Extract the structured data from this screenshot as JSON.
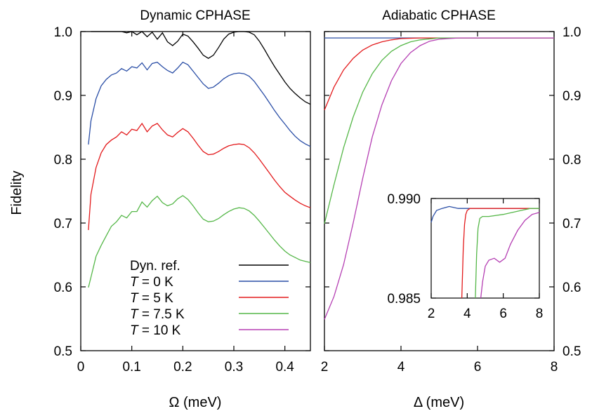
{
  "figure": {
    "ylabel": "Fidelity",
    "legend_placement": "bottom-left of left panel",
    "legend": [
      {
        "label": "Dyn. ref.",
        "italic_prefix": "",
        "color": "#000000"
      },
      {
        "label": " = 0 K",
        "italic_prefix": "T",
        "color": "#2a4ea6"
      },
      {
        "label": " = 5 K",
        "italic_prefix": "T",
        "color": "#e31a1c"
      },
      {
        "label": " = 7.5 K",
        "italic_prefix": "T",
        "color": "#55b748"
      },
      {
        "label": " = 10 K",
        "italic_prefix": "T",
        "color": "#b53fb3"
      }
    ]
  },
  "chart_data": [
    {
      "type": "line",
      "title": "Dynamic CPHASE",
      "xlabel": "Ω (meV)",
      "ylabel": "Fidelity",
      "xlim": [
        0,
        0.45
      ],
      "ylim": [
        0.5,
        1.0
      ],
      "xticks": [
        "0",
        "0.1",
        "0.2",
        "0.3",
        "0.4"
      ],
      "xtick_values": [
        0,
        0.1,
        0.2,
        0.3,
        0.4
      ],
      "yticks": [
        "0.5",
        "0.6",
        "0.7",
        "0.8",
        "0.9",
        "1.0"
      ],
      "ytick_values": [
        0.5,
        0.6,
        0.7,
        0.8,
        0.9,
        1.0
      ],
      "grid": false,
      "series": [
        {
          "name": "Dyn. ref.",
          "color": "#000000",
          "x": [
            0.02,
            0.05,
            0.08,
            0.09,
            0.1,
            0.11,
            0.12,
            0.13,
            0.14,
            0.15,
            0.16,
            0.17,
            0.18,
            0.19,
            0.2,
            0.21,
            0.22,
            0.23,
            0.24,
            0.25,
            0.26,
            0.27,
            0.28,
            0.29,
            0.3,
            0.31,
            0.32,
            0.33,
            0.34,
            0.35,
            0.36,
            0.37,
            0.38,
            0.39,
            0.4,
            0.41,
            0.42,
            0.43,
            0.44,
            0.45
          ],
          "y": [
            1.0,
            1.0,
            1.0,
            0.998,
            1.0,
            0.995,
            1.0,
            0.992,
            0.999,
            0.988,
            0.998,
            0.984,
            0.978,
            0.985,
            0.996,
            0.993,
            0.984,
            0.974,
            0.963,
            0.958,
            0.963,
            0.975,
            0.988,
            0.996,
            0.999,
            1.0,
            1.0,
            0.999,
            0.995,
            0.985,
            0.972,
            0.958,
            0.945,
            0.933,
            0.921,
            0.911,
            0.903,
            0.896,
            0.89,
            0.886
          ]
        },
        {
          "name": "T = 0 K",
          "color": "#2a4ea6",
          "x": [
            0.015,
            0.02,
            0.03,
            0.04,
            0.05,
            0.06,
            0.07,
            0.08,
            0.09,
            0.1,
            0.11,
            0.12,
            0.13,
            0.14,
            0.15,
            0.16,
            0.17,
            0.18,
            0.19,
            0.2,
            0.21,
            0.22,
            0.23,
            0.24,
            0.25,
            0.26,
            0.27,
            0.28,
            0.29,
            0.3,
            0.31,
            0.32,
            0.33,
            0.34,
            0.35,
            0.36,
            0.37,
            0.38,
            0.39,
            0.4,
            0.41,
            0.42,
            0.43,
            0.44,
            0.45
          ],
          "y": [
            0.823,
            0.86,
            0.895,
            0.915,
            0.925,
            0.932,
            0.935,
            0.942,
            0.938,
            0.945,
            0.943,
            0.951,
            0.94,
            0.95,
            0.952,
            0.945,
            0.939,
            0.935,
            0.943,
            0.952,
            0.948,
            0.938,
            0.928,
            0.918,
            0.911,
            0.913,
            0.919,
            0.926,
            0.931,
            0.934,
            0.935,
            0.934,
            0.93,
            0.922,
            0.911,
            0.9,
            0.888,
            0.876,
            0.865,
            0.855,
            0.845,
            0.836,
            0.829,
            0.824,
            0.82
          ]
        },
        {
          "name": "T = 5 K",
          "color": "#e31a1c",
          "x": [
            0.015,
            0.02,
            0.03,
            0.04,
            0.05,
            0.06,
            0.07,
            0.08,
            0.09,
            0.1,
            0.11,
            0.12,
            0.13,
            0.14,
            0.15,
            0.16,
            0.17,
            0.18,
            0.19,
            0.2,
            0.21,
            0.22,
            0.23,
            0.24,
            0.25,
            0.26,
            0.27,
            0.28,
            0.29,
            0.3,
            0.31,
            0.32,
            0.33,
            0.34,
            0.35,
            0.36,
            0.37,
            0.38,
            0.39,
            0.4,
            0.41,
            0.42,
            0.43,
            0.44,
            0.45
          ],
          "y": [
            0.689,
            0.745,
            0.787,
            0.81,
            0.823,
            0.83,
            0.835,
            0.843,
            0.838,
            0.847,
            0.845,
            0.856,
            0.843,
            0.852,
            0.856,
            0.846,
            0.838,
            0.835,
            0.842,
            0.848,
            0.843,
            0.833,
            0.822,
            0.812,
            0.807,
            0.808,
            0.812,
            0.817,
            0.821,
            0.823,
            0.824,
            0.823,
            0.818,
            0.81,
            0.8,
            0.789,
            0.778,
            0.767,
            0.757,
            0.748,
            0.742,
            0.736,
            0.731,
            0.727,
            0.724
          ]
        },
        {
          "name": "T = 7.5 K",
          "color": "#55b748",
          "x": [
            0.015,
            0.02,
            0.03,
            0.04,
            0.05,
            0.06,
            0.07,
            0.08,
            0.09,
            0.1,
            0.11,
            0.12,
            0.13,
            0.14,
            0.15,
            0.16,
            0.17,
            0.18,
            0.19,
            0.2,
            0.21,
            0.22,
            0.23,
            0.24,
            0.25,
            0.26,
            0.27,
            0.28,
            0.29,
            0.3,
            0.31,
            0.32,
            0.33,
            0.34,
            0.35,
            0.36,
            0.37,
            0.38,
            0.39,
            0.4,
            0.41,
            0.42,
            0.43,
            0.44,
            0.45
          ],
          "y": [
            0.599,
            0.615,
            0.648,
            0.665,
            0.68,
            0.695,
            0.702,
            0.712,
            0.708,
            0.718,
            0.718,
            0.733,
            0.725,
            0.735,
            0.742,
            0.732,
            0.727,
            0.73,
            0.738,
            0.743,
            0.737,
            0.727,
            0.716,
            0.706,
            0.702,
            0.703,
            0.707,
            0.713,
            0.718,
            0.722,
            0.724,
            0.723,
            0.719,
            0.712,
            0.703,
            0.693,
            0.683,
            0.673,
            0.664,
            0.656,
            0.65,
            0.646,
            0.642,
            0.64,
            0.638
          ]
        }
      ]
    },
    {
      "type": "line",
      "title": "Adiabatic CPHASE",
      "xlabel": "Δ (meV)",
      "ylabel": "Fidelity",
      "xlim": [
        2,
        8
      ],
      "ylim": [
        0.5,
        1.0
      ],
      "xticks": [
        "2",
        "4",
        "6",
        "8"
      ],
      "xtick_values": [
        2,
        4,
        6,
        8
      ],
      "yticks": [
        "0.5",
        "0.6",
        "0.7",
        "0.8",
        "0.9",
        "1.0"
      ],
      "ytick_values": [
        0.5,
        0.6,
        0.7,
        0.8,
        0.9,
        1.0
      ],
      "grid": false,
      "series": [
        {
          "name": "T = 0 K",
          "color": "#2a4ea6",
          "x": [
            2,
            3,
            4,
            5,
            6,
            7,
            8
          ],
          "y": [
            0.99,
            0.99,
            0.99,
            0.99,
            0.99,
            0.99,
            0.99
          ]
        },
        {
          "name": "T = 5 K",
          "color": "#e31a1c",
          "x": [
            2,
            2.25,
            2.5,
            2.75,
            3,
            3.25,
            3.5,
            3.75,
            4,
            4.5,
            5,
            6,
            8
          ],
          "y": [
            0.877,
            0.913,
            0.94,
            0.958,
            0.971,
            0.979,
            0.984,
            0.987,
            0.989,
            0.99,
            0.99,
            0.99,
            0.99
          ]
        },
        {
          "name": "T = 7.5 K",
          "color": "#55b748",
          "x": [
            2,
            2.25,
            2.5,
            2.75,
            3,
            3.25,
            3.5,
            3.75,
            4,
            4.25,
            4.5,
            5,
            5.5,
            8
          ],
          "y": [
            0.699,
            0.76,
            0.818,
            0.866,
            0.905,
            0.934,
            0.955,
            0.969,
            0.978,
            0.984,
            0.987,
            0.99,
            0.99,
            0.99
          ]
        },
        {
          "name": "T = 10 K",
          "color": "#b53fb3",
          "x": [
            2,
            2.25,
            2.5,
            2.75,
            3,
            3.25,
            3.5,
            3.75,
            4,
            4.25,
            4.5,
            4.75,
            5,
            5.5,
            6,
            8
          ],
          "y": [
            0.549,
            0.585,
            0.635,
            0.7,
            0.77,
            0.835,
            0.885,
            0.923,
            0.95,
            0.967,
            0.978,
            0.985,
            0.988,
            0.99,
            0.99,
            0.99
          ]
        }
      ]
    },
    {
      "type": "line",
      "title": "",
      "xlabel": "",
      "ylabel": "",
      "xlim": [
        2,
        8
      ],
      "ylim": [
        0.985,
        0.99
      ],
      "xticks": [
        "2",
        "4",
        "6",
        "8"
      ],
      "xtick_values": [
        2,
        4,
        6,
        8
      ],
      "yticks": [
        "0.985",
        "0.990"
      ],
      "ytick_values": [
        0.985,
        0.99
      ],
      "grid": false,
      "series": [
        {
          "name": "T = 0 K",
          "color": "#2a4ea6",
          "x": [
            2,
            2.1,
            2.3,
            2.6,
            3,
            3.5,
            4,
            5,
            6,
            7,
            8
          ],
          "y": [
            0.9888,
            0.9891,
            0.9894,
            0.9895,
            0.9896,
            0.9895,
            0.9895,
            0.9895,
            0.9895,
            0.9895,
            0.9895
          ]
        },
        {
          "name": "T = 5 K",
          "color": "#e31a1c",
          "x": [
            3.7,
            3.78,
            3.85,
            3.92,
            4.0,
            4.15,
            4.4,
            5,
            6,
            8
          ],
          "y": [
            0.985,
            0.9875,
            0.9887,
            0.9892,
            0.9894,
            0.9895,
            0.9895,
            0.9895,
            0.9895,
            0.9895
          ]
        },
        {
          "name": "T = 7.5 K",
          "color": "#55b748",
          "x": [
            4.45,
            4.52,
            4.6,
            4.7,
            4.85,
            5.2,
            6,
            6.5,
            7,
            7.5,
            8
          ],
          "y": [
            0.985,
            0.9872,
            0.9885,
            0.989,
            0.9891,
            0.9891,
            0.9892,
            0.9893,
            0.9894,
            0.9895,
            0.9895
          ]
        },
        {
          "name": "T = 10 K",
          "color": "#b53fb3",
          "x": [
            4.75,
            4.85,
            5,
            5.2,
            5.5,
            5.8,
            6.1,
            6.4,
            6.8,
            7.2,
            7.6,
            8
          ],
          "y": [
            0.985,
            0.9858,
            0.9866,
            0.9869,
            0.987,
            0.9868,
            0.987,
            0.9877,
            0.9884,
            0.9889,
            0.9892,
            0.9893
          ]
        }
      ]
    }
  ]
}
